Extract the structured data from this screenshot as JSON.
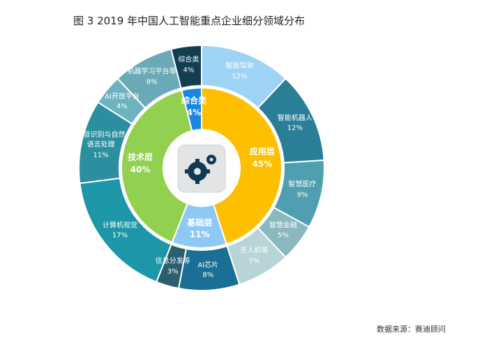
{
  "chart_data": {
    "type": "sunburst",
    "title": "图 3  2019 年中国人工智能重点企业细分领域分布",
    "source": "数据来源：赛迪顾问",
    "inner": {
      "categories": [
        "应用层",
        "基础层",
        "技术层",
        "综合类"
      ],
      "values": [
        45,
        11,
        40,
        4
      ],
      "value_labels": [
        "45%",
        "11%",
        "40%",
        "4%"
      ],
      "colors": [
        "#fdbf00",
        "#8ec9f5",
        "#92d050",
        "#1a86e0"
      ]
    },
    "outer": {
      "categories": [
        "智能驾驶",
        "智能机器人",
        "智慧医疗",
        "智慧金融",
        "无人机等",
        "AI芯片",
        "信息分发等",
        "计算机视觉",
        "语音识别与自然语言处理",
        "AI开放平台",
        "机器学习平台等",
        "综合类"
      ],
      "values": [
        12,
        12,
        9,
        5,
        7,
        8,
        3,
        17,
        11,
        4,
        8,
        4
      ],
      "value_labels": [
        "12%",
        "12%",
        "9%",
        "5%",
        "7%",
        "8%",
        "3%",
        "17%",
        "11%",
        "4%",
        "8%",
        "4%"
      ],
      "colors": [
        "#9fd3f5",
        "#2a7f96",
        "#4f9fb0",
        "#8ab8bf",
        "#b8d4d6",
        "#1a6f96",
        "#2b5f70",
        "#1d97a8",
        "#2b8fa0",
        "#6db2bf",
        "#6aaab6",
        "#123e50"
      ]
    }
  }
}
